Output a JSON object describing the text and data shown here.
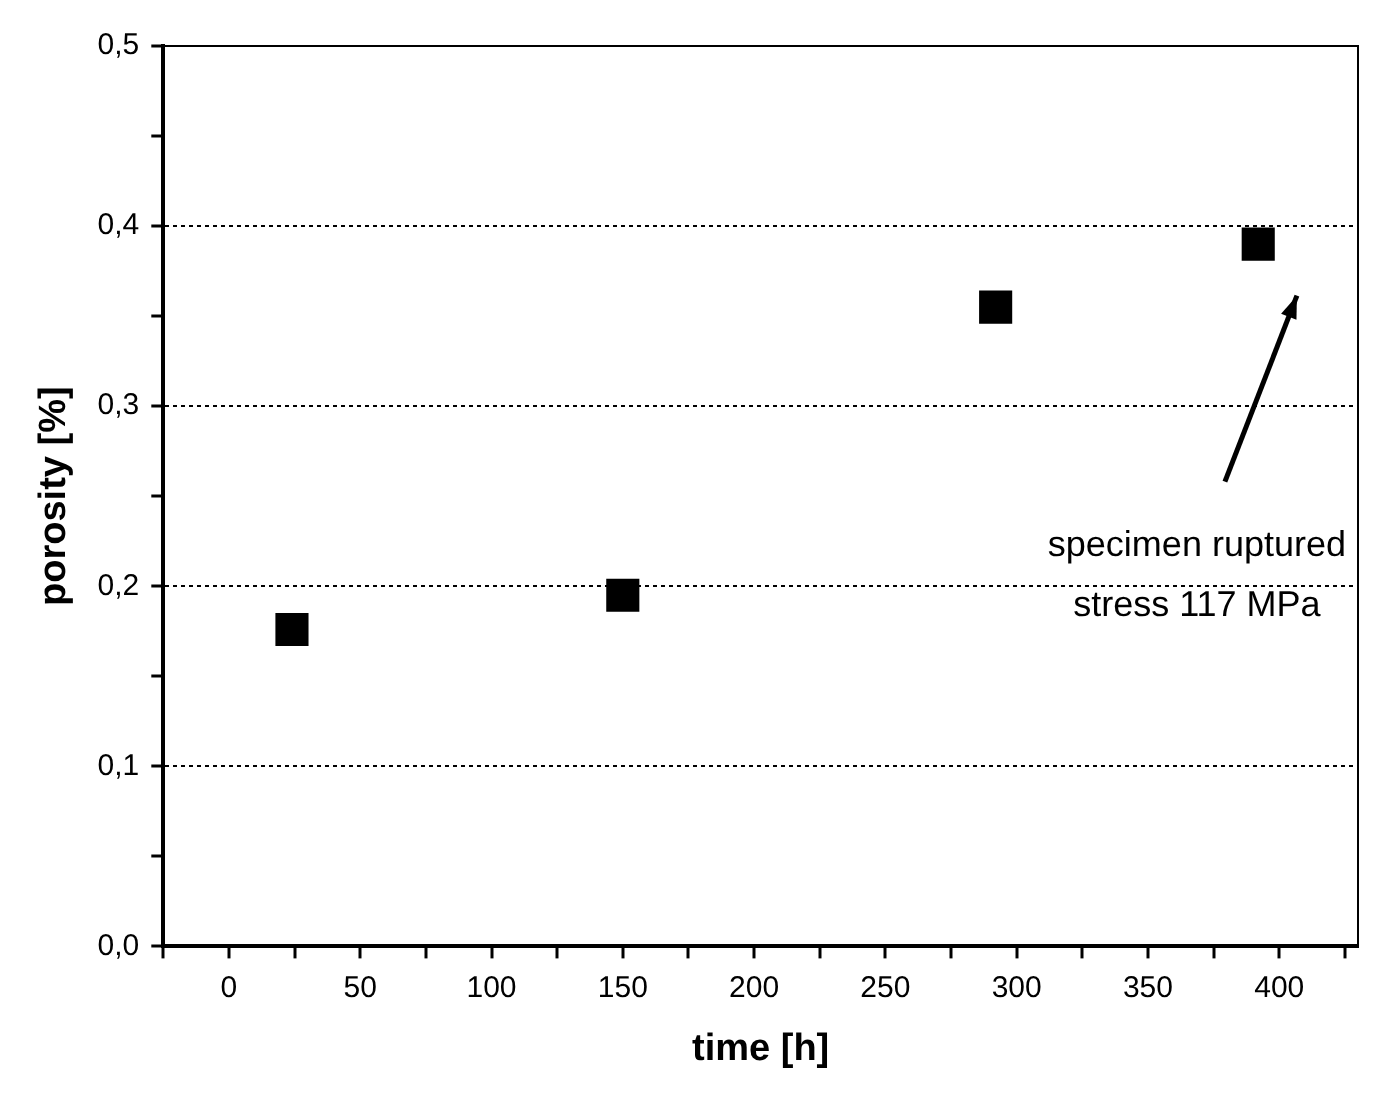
{
  "chart_data": {
    "type": "scatter",
    "xlabel": "time [h]",
    "ylabel": "porosity [%]",
    "x": [
      24,
      150,
      292,
      392
    ],
    "series": [
      {
        "color": "#000000",
        "values": [
          0.176,
          0.195,
          0.355,
          0.39
        ]
      }
    ],
    "xlim": [
      -25,
      430
    ],
    "ylim": [
      0,
      0.5
    ],
    "xticks": [
      {
        "value": -25,
        "label": null
      },
      0,
      {
        "value": 25,
        "label": null
      },
      50,
      {
        "value": 75,
        "label": null
      },
      100,
      {
        "value": 125,
        "label": null
      },
      150,
      {
        "value": 175,
        "label": null
      },
      200,
      {
        "value": 225,
        "label": null
      },
      250,
      {
        "value": 275,
        "label": null
      },
      300,
      {
        "value": 325,
        "label": null
      },
      350,
      {
        "value": 375,
        "label": null
      },
      400,
      {
        "value": 425,
        "label": null
      }
    ],
    "yticks": [
      {
        "value": 0,
        "label": "0,0"
      },
      {
        "value": 0.05,
        "label": null
      },
      {
        "value": 0.1,
        "label": "0,1"
      },
      {
        "value": 0.15,
        "label": null
      },
      {
        "value": 0.2,
        "label": "0,2"
      },
      {
        "value": 0.25,
        "label": null
      },
      {
        "value": 0.3,
        "label": "0,3"
      },
      {
        "value": 0.35,
        "label": null
      },
      {
        "value": 0.4,
        "label": "0,4"
      },
      {
        "value": 0.45,
        "label": null
      },
      {
        "value": 0.5,
        "label": "0,5"
      }
    ],
    "grid": "y",
    "marker": "square",
    "legend": false,
    "annotations": [
      "specimen ruptured\nstress 117 MPa"
    ]
  }
}
